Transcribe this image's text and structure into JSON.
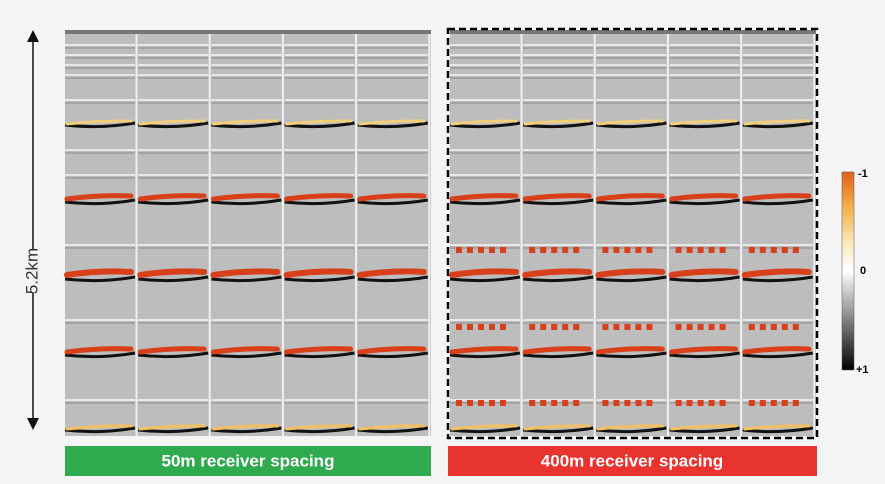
{
  "scale_label": "5.2km",
  "panels": [
    {
      "label": "50m receiver spacing"
    },
    {
      "label": "400m receiver spacing"
    }
  ],
  "colorbar": {
    "labels": [
      "-1",
      "0",
      "+1"
    ]
  }
}
